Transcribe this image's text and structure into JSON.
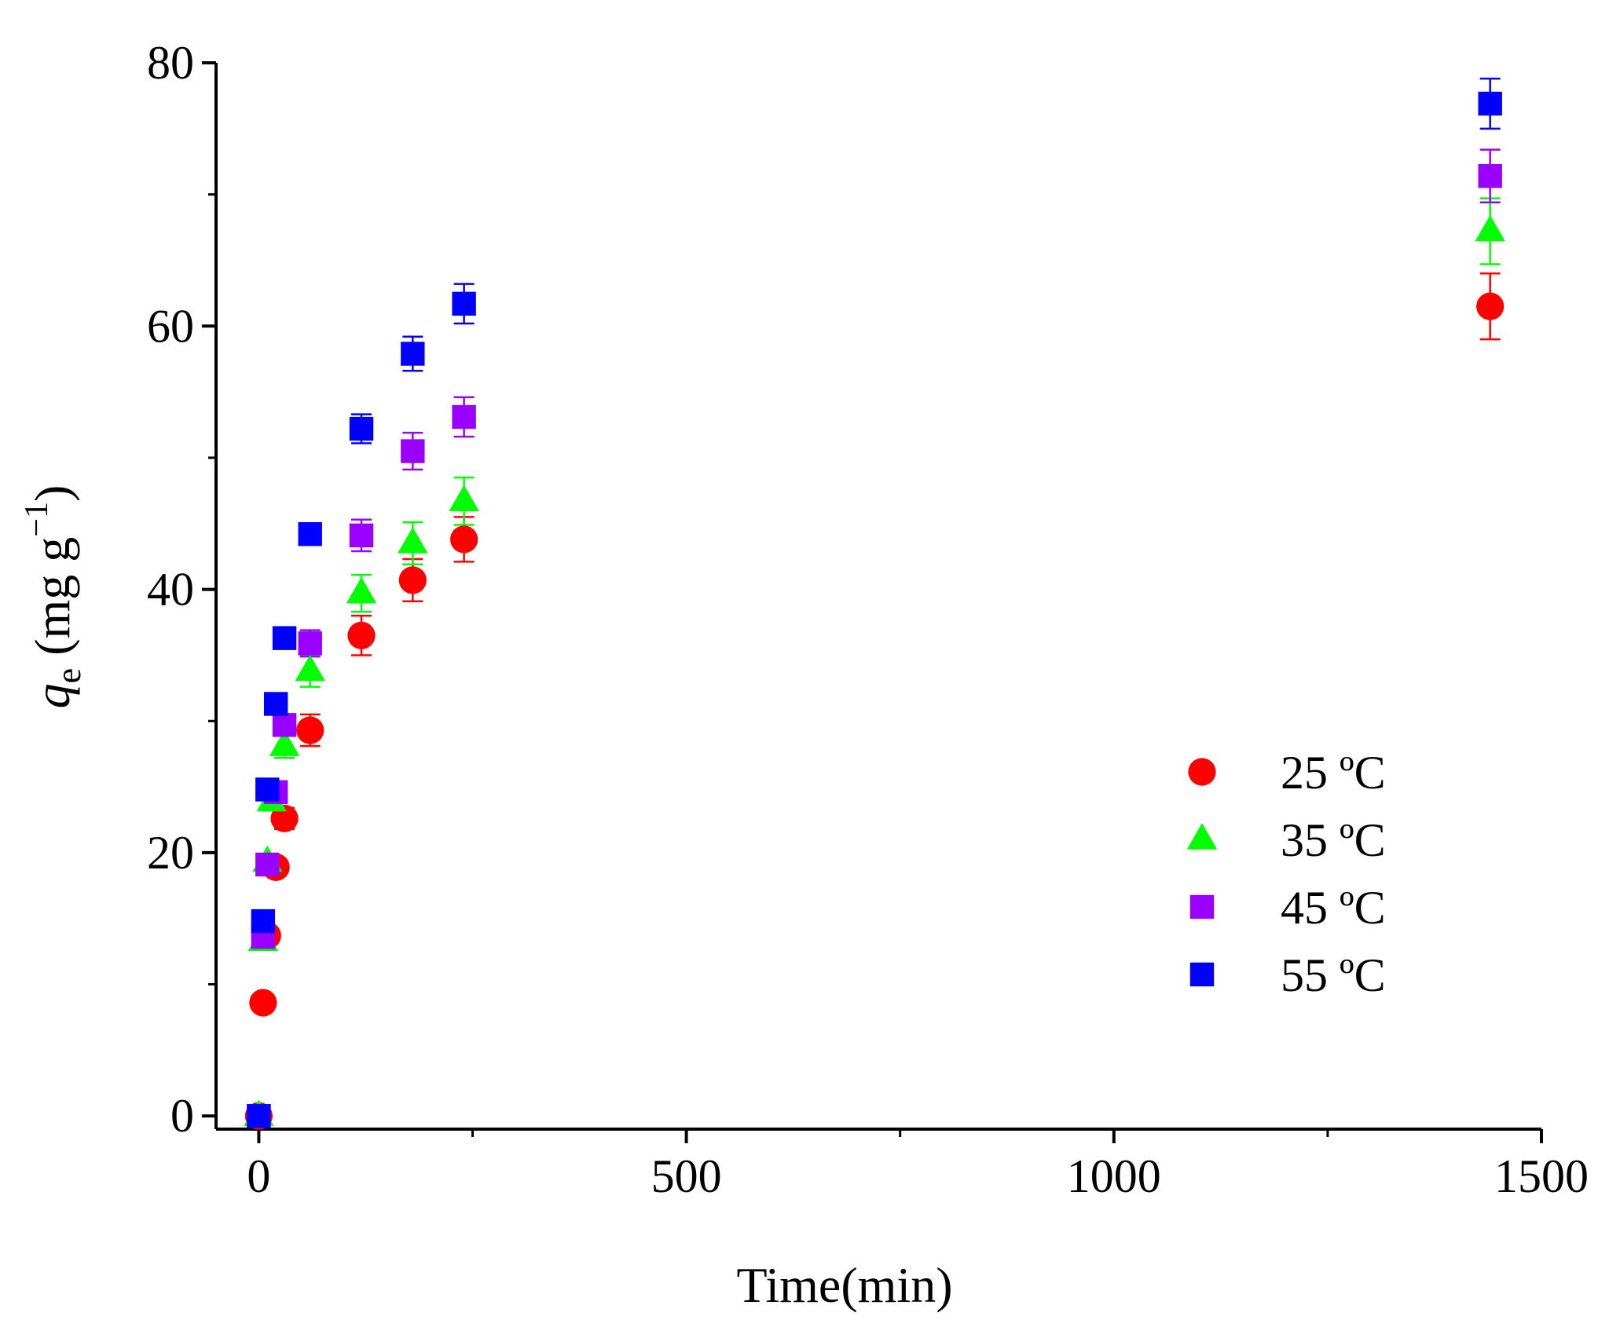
{
  "chart_data": {
    "type": "scatter",
    "title": "",
    "xlabel": "Time(min)",
    "ylabel_main": "q",
    "ylabel_sub": "e",
    "ylabel_units_open": " (mg g",
    "ylabel_units_sup": "−1",
    "ylabel_units_close": ")",
    "xlim": [
      -50,
      1500
    ],
    "ylim": [
      -1,
      80
    ],
    "xticks": [
      0,
      500,
      1000,
      1500
    ],
    "yticks": [
      0,
      20,
      40,
      60,
      80
    ],
    "xtick_labels": [
      "0",
      "500",
      "1000",
      "1500"
    ],
    "ytick_labels": [
      "0",
      "20",
      "40",
      "60",
      "80"
    ],
    "legend_position": "right",
    "series": [
      {
        "name": "25 ºC",
        "marker": "circle",
        "color": "#ff0000",
        "points": [
          {
            "x": 0,
            "y": 0,
            "err": 0
          },
          {
            "x": 5,
            "y": 8.6,
            "err": 0.3
          },
          {
            "x": 10,
            "y": 13.7,
            "err": 0.5
          },
          {
            "x": 20,
            "y": 18.9,
            "err": 0.6
          },
          {
            "x": 30,
            "y": 22.6,
            "err": 0.8
          },
          {
            "x": 60,
            "y": 29.3,
            "err": 1.2
          },
          {
            "x": 120,
            "y": 36.5,
            "err": 1.5
          },
          {
            "x": 180,
            "y": 40.7,
            "err": 1.6
          },
          {
            "x": 240,
            "y": 43.8,
            "err": 1.7
          },
          {
            "x": 1440,
            "y": 61.5,
            "err": 2.5
          }
        ]
      },
      {
        "name": "35 ºC",
        "marker": "triangle",
        "color": "#00ff00",
        "points": [
          {
            "x": 0,
            "y": 0,
            "err": 0
          },
          {
            "x": 5,
            "y": 13.3,
            "err": 0.4
          },
          {
            "x": 10,
            "y": 19.3,
            "err": 0.5
          },
          {
            "x": 15,
            "y": 23.9,
            "err": 0.7
          },
          {
            "x": 30,
            "y": 28.1,
            "err": 0.9
          },
          {
            "x": 60,
            "y": 33.8,
            "err": 1.2
          },
          {
            "x": 120,
            "y": 39.7,
            "err": 1.4
          },
          {
            "x": 180,
            "y": 43.5,
            "err": 1.6
          },
          {
            "x": 240,
            "y": 46.7,
            "err": 1.8
          },
          {
            "x": 1440,
            "y": 67.2,
            "err": 2.5
          }
        ]
      },
      {
        "name": "45 ºC",
        "marker": "square",
        "color": "#9900ff",
        "points": [
          {
            "x": 0,
            "y": 0,
            "err": 0
          },
          {
            "x": 5,
            "y": 13.6,
            "err": 0.4
          },
          {
            "x": 10,
            "y": 19.1,
            "err": 0.5
          },
          {
            "x": 20,
            "y": 24.6,
            "err": 0.7
          },
          {
            "x": 30,
            "y": 29.7,
            "err": 0.8
          },
          {
            "x": 60,
            "y": 35.9,
            "err": 1.0
          },
          {
            "x": 120,
            "y": 44.1,
            "err": 1.2
          },
          {
            "x": 180,
            "y": 50.5,
            "err": 1.4
          },
          {
            "x": 240,
            "y": 53.1,
            "err": 1.5
          },
          {
            "x": 1440,
            "y": 71.4,
            "err": 2.0
          }
        ]
      },
      {
        "name": "55 ºC",
        "marker": "square",
        "color": "#0000ff",
        "points": [
          {
            "x": 0,
            "y": 0,
            "err": 0
          },
          {
            "x": 5,
            "y": 14.8,
            "err": 0.3
          },
          {
            "x": 10,
            "y": 24.8,
            "err": 0.4
          },
          {
            "x": 20,
            "y": 31.3,
            "err": 0.5
          },
          {
            "x": 30,
            "y": 36.3,
            "err": 0.5
          },
          {
            "x": 60,
            "y": 44.2,
            "err": 0.8
          },
          {
            "x": 120,
            "y": 52.2,
            "err": 1.1
          },
          {
            "x": 180,
            "y": 57.9,
            "err": 1.3
          },
          {
            "x": 240,
            "y": 61.7,
            "err": 1.5
          },
          {
            "x": 1440,
            "y": 76.9,
            "err": 1.9
          }
        ]
      }
    ]
  }
}
